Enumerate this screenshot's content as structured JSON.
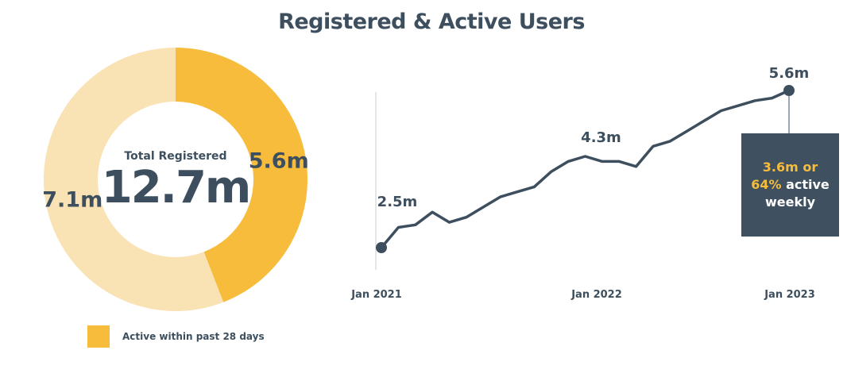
{
  "title": "Registered & Active Users",
  "colors": {
    "active": "#f7bc3b",
    "inactive": "#f9e2b4",
    "dark": "#3d4f5e",
    "callout_bg": "#3f5160"
  },
  "legend": {
    "label": "Active within past 28 days"
  },
  "chart_data": [
    {
      "type": "pie",
      "variant": "donut",
      "center_label": "Total Registered",
      "center_value": "12.7m",
      "slices": [
        {
          "label": "5.6m",
          "value": 5.6,
          "color": "#f7bc3b"
        },
        {
          "label": "7.1m",
          "value": 7.1,
          "color": "#f9e2b4"
        }
      ]
    },
    {
      "type": "line",
      "x_ticks": [
        "Jan 2021",
        "Jan 2022",
        "Jan 2023"
      ],
      "series": [
        {
          "x": [
            "2021-01",
            "2021-02",
            "2021-03",
            "2021-04",
            "2021-05",
            "2021-06",
            "2021-07",
            "2021-08",
            "2021-09",
            "2021-10",
            "2021-11",
            "2021-12",
            "2022-01",
            "2022-02",
            "2022-03",
            "2022-04",
            "2022-05",
            "2022-06",
            "2022-07",
            "2022-08",
            "2022-09",
            "2022-10",
            "2022-11",
            "2022-12",
            "2023-01"
          ],
          "values": [
            2.5,
            2.9,
            2.95,
            3.2,
            3.0,
            3.1,
            3.3,
            3.5,
            3.6,
            3.7,
            4.0,
            4.2,
            4.3,
            4.2,
            4.2,
            4.1,
            4.5,
            4.6,
            4.8,
            5.0,
            5.2,
            5.3,
            5.4,
            5.45,
            5.6
          ],
          "annotations": [
            {
              "label": "2.5m",
              "x": "2021-01"
            },
            {
              "label": "4.3m",
              "x": "2022-01"
            },
            {
              "label": "5.6m",
              "x": "2023-01"
            }
          ]
        }
      ]
    }
  ],
  "callout": {
    "line1": "3.6m or",
    "line2_accent": "64%",
    "line2_rest": " active",
    "line3": "weekly"
  }
}
